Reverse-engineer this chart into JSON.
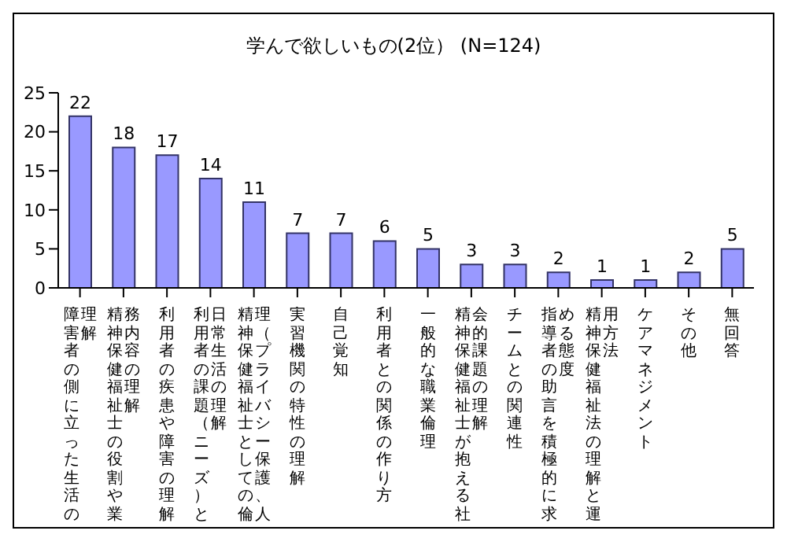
{
  "chart_data": {
    "type": "bar",
    "title": "学んで欲しいもの(2位） (N=124)",
    "categories": [
      "障害者の側に立った生活の理解",
      "精神保健福祉士の役割や業務内容の理解",
      "利用者の疾患や障害の理解",
      "利用者の課題（ニーズ）と日常生活の理解",
      "精神保健福祉士としての倫理（プライバシー保護、人",
      "実習機関の特性の理解",
      "自己覚知",
      "利用者との関係の作り方",
      "一般的な職業倫理",
      "精神保健福祉士が抱える社会的課題の理解",
      "チームとの関連性",
      "指導者の助言を積極的に求める態度",
      "精神保健福祉法の理解と運用方法",
      "ケアマネジメント",
      "その他",
      "無回答"
    ],
    "values": [
      22,
      18,
      17,
      14,
      11,
      7,
      7,
      6,
      5,
      3,
      3,
      2,
      1,
      1,
      2,
      5
    ],
    "color": "#9999ff",
    "ylim": [
      0,
      25
    ],
    "yticks": [
      0,
      5,
      10,
      15,
      20,
      25
    ],
    "grid": false,
    "data_labels": true
  }
}
